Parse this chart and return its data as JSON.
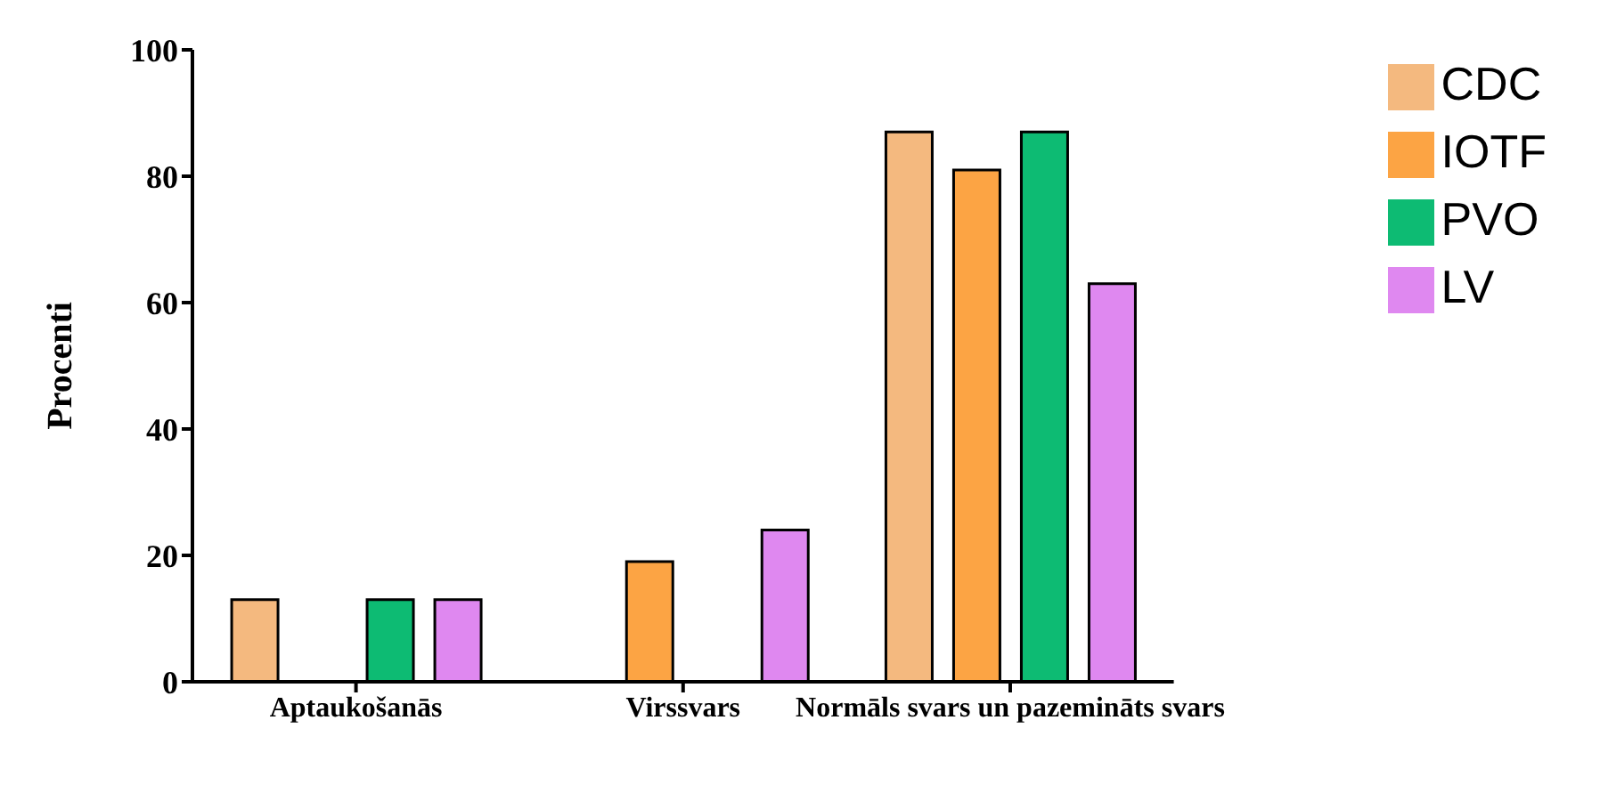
{
  "chart_data": {
    "type": "bar",
    "ylabel": "Procenti",
    "categories": [
      "Aptaukošanās",
      "Virssvars",
      "Normāls svars un pazemināts svars"
    ],
    "series": [
      {
        "name": "CDC",
        "color": "#f4b97f",
        "values": [
          13,
          null,
          87
        ]
      },
      {
        "name": "IOTF",
        "color": "#fca444",
        "values": [
          null,
          19,
          81
        ]
      },
      {
        "name": "PVO",
        "color": "#0dbb73",
        "values": [
          13,
          null,
          87
        ]
      },
      {
        "name": "LV",
        "color": "#df88f0",
        "values": [
          13,
          24,
          63
        ]
      }
    ],
    "ylim": [
      0,
      100
    ],
    "yticks": [
      0,
      20,
      40,
      60,
      80,
      100
    ],
    "grid": false,
    "legend": "top right"
  }
}
